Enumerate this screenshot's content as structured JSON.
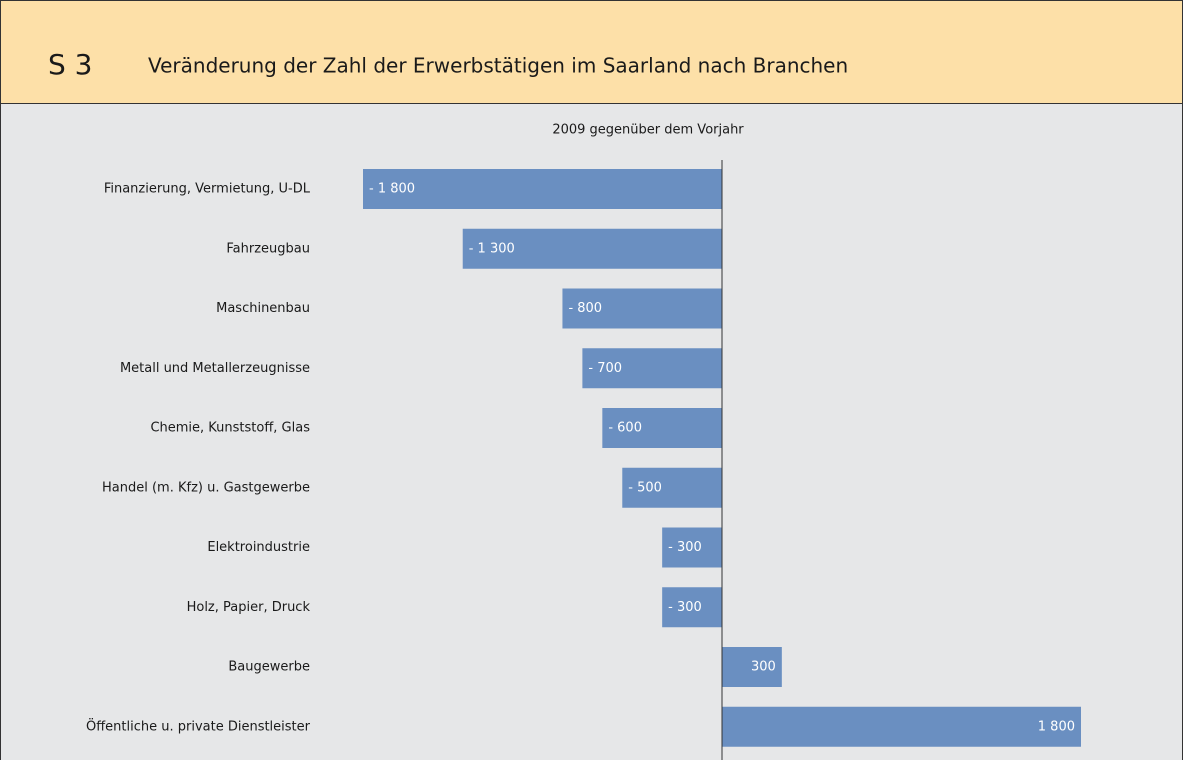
{
  "chart_data": {
    "type": "barh",
    "label": "S 3",
    "title": "Veränderung der Zahl der Erwerbstätigen im Saarland nach Branchen",
    "subtitle": "2009 gegenüber dem Vorjahr",
    "categories": [
      "Finanzierung, Vermietung, U-DL",
      "Fahrzeugbau",
      "Maschinenbau",
      "Metall und Metallerzeugnisse",
      "Chemie, Kunststoff, Glas",
      "Handel (m. Kfz) u. Gastgewerbe",
      "Elektroindustrie",
      "Holz, Papier, Druck",
      "Baugewerbe",
      "Öffentliche u. private Dienstleister"
    ],
    "values": [
      -1800,
      -1300,
      -800,
      -700,
      -600,
      -500,
      -300,
      -300,
      300,
      1800
    ],
    "value_labels": [
      "- 1 800",
      "- 1 300",
      "- 800",
      "- 700",
      "- 600",
      "- 500",
      "- 300",
      "- 300",
      "300",
      "1 800"
    ],
    "color": "#6a8fc1",
    "xlim": [
      -1800,
      1800
    ]
  }
}
